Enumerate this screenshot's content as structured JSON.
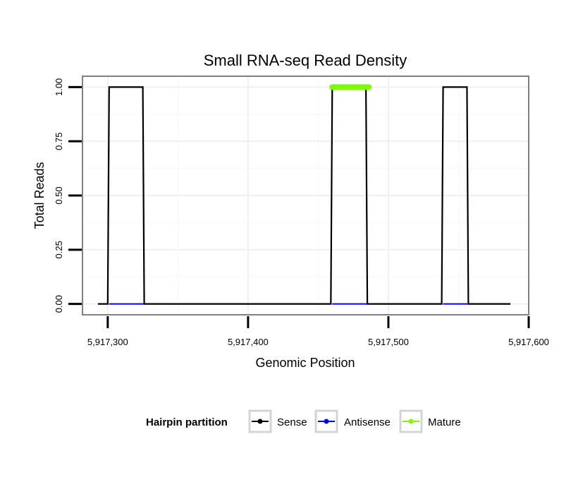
{
  "chart_data": {
    "type": "line",
    "title": "Small RNA-seq Read Density",
    "xlabel": "Genomic Position",
    "ylabel": "Total Reads",
    "xlim": [
      5917282,
      5917600
    ],
    "ylim": [
      -0.05,
      1.05
    ],
    "x_ticks": [
      5917300,
      5917400,
      5917500,
      5917600
    ],
    "x_tick_labels": [
      "5,917,300",
      "5,917,400",
      "5,917,500",
      "5,917,600"
    ],
    "y_ticks": [
      0,
      0.25,
      0.5,
      0.75,
      1
    ],
    "y_tick_labels": [
      "0.00",
      "0.25",
      "0.50",
      "0.75",
      "1.00"
    ],
    "grid": true,
    "legend": {
      "title": "Hairpin partition",
      "position": "bottom",
      "entries": [
        "Sense",
        "Antisense",
        "Mature"
      ]
    },
    "series": [
      {
        "name": "Sense",
        "color": "#000000",
        "points": [
          [
            5917293,
            0
          ],
          [
            5917300,
            0
          ],
          [
            5917301,
            1
          ],
          [
            5917325,
            1
          ],
          [
            5917326,
            0
          ],
          [
            5917459,
            0
          ],
          [
            5917460,
            1
          ],
          [
            5917484,
            1
          ],
          [
            5917485,
            0
          ],
          [
            5917538,
            0
          ],
          [
            5917539,
            1
          ],
          [
            5917556,
            1
          ],
          [
            5917557,
            0
          ],
          [
            5917587,
            0
          ]
        ]
      },
      {
        "name": "Antisense",
        "color": "#0000ff",
        "segments": [
          [
            5917301,
            5917326
          ],
          [
            5917460,
            5917485
          ],
          [
            5917539,
            5917557
          ]
        ],
        "value": 0
      },
      {
        "name": "Mature",
        "color": "#7cfc00",
        "segments": [
          [
            5917460,
            5917486
          ]
        ],
        "value": 1
      }
    ]
  }
}
